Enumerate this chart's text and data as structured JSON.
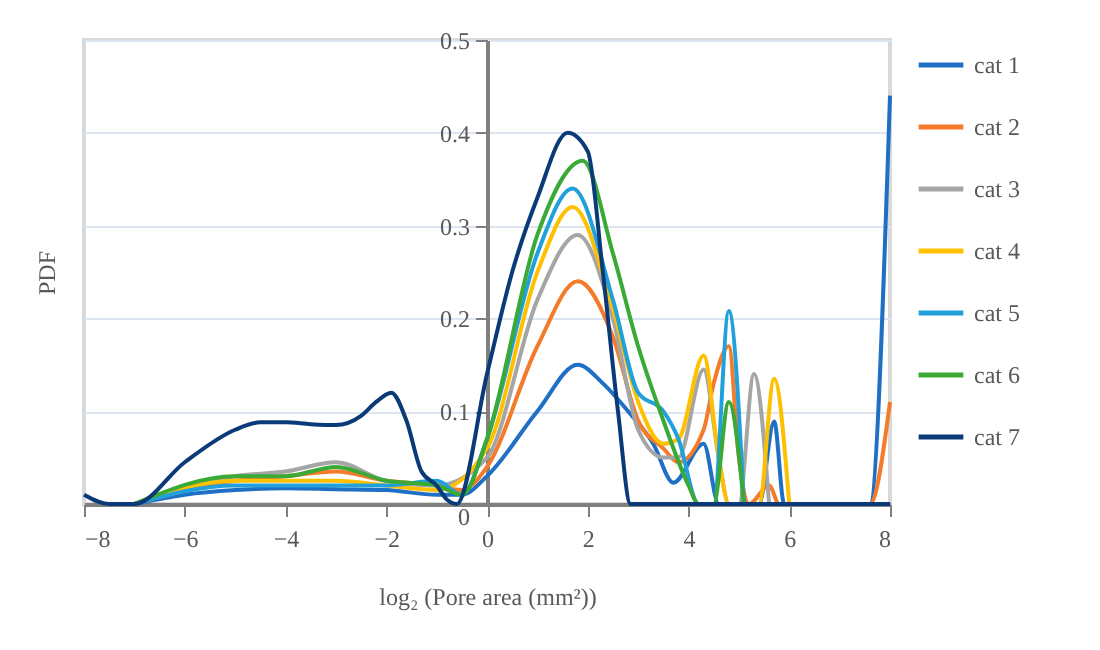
{
  "chart_data": {
    "type": "line",
    "xlabel": "log₂ (Pore area (mm²))",
    "ylabel": "PDF",
    "xlim": [
      -8,
      8
    ],
    "xticks": [
      -8,
      -6,
      -4,
      -2,
      0,
      2,
      4,
      6,
      8
    ],
    "ylim": [
      0,
      0.5
    ],
    "yticks": [
      0,
      0.1,
      0.2,
      0.3,
      0.4,
      0.5
    ],
    "grid": "y",
    "legend": "right",
    "line_style": "solid",
    "marker": "none",
    "series": [
      {
        "name": "cat 1",
        "color": "#1f6fc5",
        "x": [
          -7,
          -6,
          -5,
          -4,
          -3,
          -2,
          -1,
          -0.5,
          0,
          1,
          1.8,
          2.3,
          2.8,
          3.3,
          3.7,
          4.3,
          4.6,
          5.4,
          5.7,
          5.9,
          7.6,
          8
        ],
        "values": [
          0,
          0.01,
          0.015,
          0.017,
          0.016,
          0.015,
          0.01,
          0.01,
          0.03,
          0.1,
          0.15,
          0.13,
          0.1,
          0.065,
          0.023,
          0.065,
          0,
          0,
          0.089,
          0,
          0,
          0.44
        ]
      },
      {
        "name": "cat 2",
        "color": "#f47b2a",
        "x": [
          -7,
          -5,
          -4,
          -3,
          -2,
          -1,
          -0.5,
          0,
          1,
          1.8,
          2.5,
          3,
          3.5,
          3.8,
          4.3,
          4.5,
          4.8,
          5,
          5.2,
          5.6,
          5.8,
          7.6,
          8
        ],
        "values": [
          0,
          0.025,
          0.03,
          0.035,
          0.025,
          0.02,
          0.015,
          0.04,
          0.17,
          0.24,
          0.18,
          0.09,
          0.06,
          0.045,
          0.08,
          0.13,
          0.17,
          0.05,
          0,
          0.02,
          0,
          0,
          0.11
        ]
      },
      {
        "name": "cat 3",
        "color": "#a5a5a5",
        "x": [
          -7,
          -5,
          -4,
          -3,
          -2,
          -1,
          0,
          1,
          1.8,
          2.5,
          3,
          3.5,
          3.8,
          4.3,
          4.6,
          4.8,
          5,
          5.3,
          5.6
        ],
        "values": [
          0,
          0.03,
          0.035,
          0.045,
          0.025,
          0.02,
          0.05,
          0.22,
          0.29,
          0.2,
          0.08,
          0.05,
          0.05,
          0.145,
          0.05,
          0,
          0,
          0.14,
          0
        ]
      },
      {
        "name": "cat 4",
        "color": "#ffc000",
        "x": [
          -7,
          -5,
          -4,
          -3,
          -2,
          -1,
          0,
          1,
          1.7,
          2.5,
          3,
          3.5,
          3.8,
          4.3,
          4.6,
          4.8,
          5.4,
          5.7,
          6
        ],
        "values": [
          0,
          0.025,
          0.025,
          0.025,
          0.02,
          0.015,
          0.06,
          0.25,
          0.32,
          0.21,
          0.11,
          0.065,
          0.07,
          0.16,
          0.05,
          0,
          0,
          0.135,
          0
        ]
      },
      {
        "name": "cat 5",
        "color": "#21a0dc",
        "x": [
          -7,
          -5,
          -4,
          -3,
          -2,
          -1,
          -0.5,
          0,
          1,
          1.7,
          2.5,
          3,
          3.5,
          3.8,
          4.2,
          4.5,
          4.8,
          5.1
        ],
        "values": [
          0,
          0.02,
          0.02,
          0.02,
          0.02,
          0.025,
          0.01,
          0.07,
          0.27,
          0.34,
          0.22,
          0.12,
          0.1,
          0.07,
          0,
          0,
          0.208,
          0
        ]
      },
      {
        "name": "cat 6",
        "color": "#3aa935",
        "x": [
          -7,
          -5,
          -4,
          -3,
          -2,
          -1,
          -0.5,
          0,
          1,
          1.9,
          2.5,
          3,
          3.5,
          4,
          4.2,
          4.5,
          4.8,
          5.1
        ],
        "values": [
          0,
          0.03,
          0.03,
          0.04,
          0.025,
          0.02,
          0.01,
          0.07,
          0.29,
          0.37,
          0.27,
          0.17,
          0.09,
          0.02,
          0,
          0,
          0.11,
          0
        ]
      },
      {
        "name": "cat 7",
        "color": "#0b3a78",
        "x": [
          -8,
          -7.5,
          -7,
          -6,
          -5,
          -4.5,
          -4,
          -3.5,
          -3,
          -2.5,
          -2.2,
          -1.9,
          -1.6,
          -1.3,
          -1,
          -0.8,
          -0.6,
          0,
          0.5,
          1,
          1.6,
          2,
          2.3,
          2.6,
          2.85,
          3.5,
          8
        ],
        "values": [
          0.01,
          0,
          0,
          0.045,
          0.08,
          0.088,
          0.088,
          0.086,
          0.085,
          0.095,
          0.11,
          0.12,
          0.09,
          0.035,
          0.02,
          0.005,
          0,
          0.14,
          0.25,
          0.33,
          0.4,
          0.38,
          0.25,
          0.1,
          0,
          0,
          0
        ]
      }
    ]
  }
}
